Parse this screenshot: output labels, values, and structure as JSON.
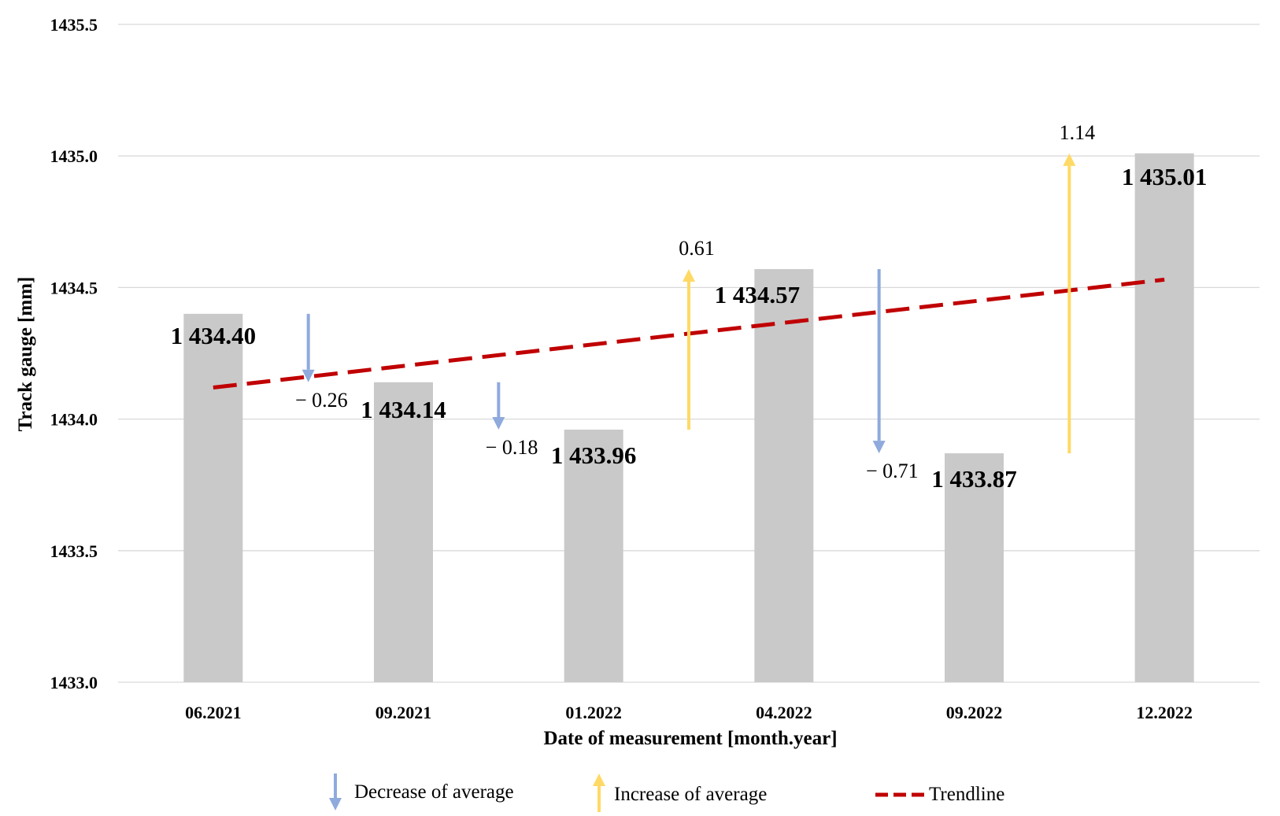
{
  "chart_data": {
    "type": "bar",
    "xlabel": "Date of measurement [month.year]",
    "ylabel": "Track gauge [mm]",
    "ylim": [
      1433.0,
      1435.5
    ],
    "yticks": [
      "1433.0",
      "1433.5",
      "1434.0",
      "1434.5",
      "1435.0",
      "1435.5"
    ],
    "grid": true,
    "categories": [
      "06.2021",
      "09.2021",
      "01.2022",
      "04.2022",
      "09.2022",
      "12.2022"
    ],
    "values": [
      1434.4,
      1434.14,
      1433.96,
      1434.57,
      1433.87,
      1435.01
    ],
    "value_labels": [
      "1 434.40",
      "1 434.14",
      "1 433.96",
      "1 434.57",
      "1 433.87",
      "1 435.01"
    ],
    "changes": [
      {
        "between": [
          "06.2021",
          "09.2021"
        ],
        "value": -0.26,
        "label": "− 0.26",
        "type": "decrease"
      },
      {
        "between": [
          "09.2021",
          "01.2022"
        ],
        "value": -0.18,
        "label": "− 0.18",
        "type": "decrease"
      },
      {
        "between": [
          "01.2022",
          "04.2022"
        ],
        "value": 0.61,
        "label": "0.61",
        "type": "increase"
      },
      {
        "between": [
          "04.2022",
          "09.2022"
        ],
        "value": -0.71,
        "label": "− 0.71",
        "type": "decrease"
      },
      {
        "between": [
          "09.2022",
          "12.2022"
        ],
        "value": 1.14,
        "label": "1.14",
        "type": "increase"
      }
    ],
    "trendline": {
      "start": 1434.12,
      "end": 1434.53
    },
    "legend": {
      "position": "bottom",
      "decrease": "Decrease of average",
      "increase": "Increase of average",
      "trend": "Trendline"
    }
  },
  "colors": {
    "bar": "#c9c9c9",
    "decrease": "#8faadc",
    "increase": "#ffd966",
    "trend": "#c00000",
    "grid": "#d9d9d9"
  }
}
